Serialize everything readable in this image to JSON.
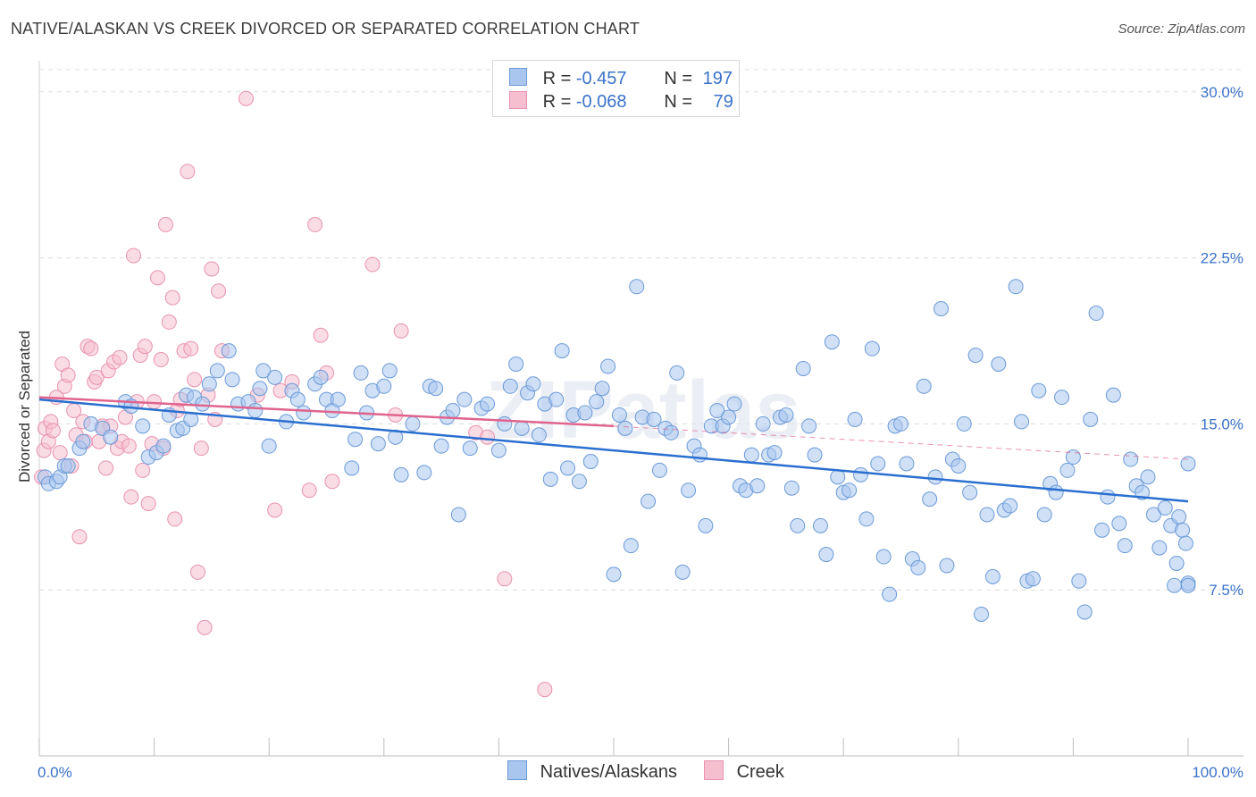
{
  "header": {
    "title": "NATIVE/ALASKAN VS CREEK DIVORCED OR SEPARATED CORRELATION CHART",
    "source": "Source: ZipAtlas.com"
  },
  "legend": {
    "rows": [
      {
        "r_label": "R =",
        "r_value": "-0.457",
        "n_label": "N =",
        "n_value": "197"
      },
      {
        "r_label": "R =",
        "r_value": "-0.068",
        "n_label": "N =",
        "n_value": "79"
      }
    ]
  },
  "bottom_legend": [
    "Natives/Alaskans",
    "Creek"
  ],
  "watermark": "ZIPatlas",
  "colors": {
    "blue_fill": "#a9c7ee",
    "blue_stroke": "#6b9ad8",
    "blue_line": "#2a6fd0",
    "pink_fill": "#f6bfd0",
    "pink_stroke": "#e892b0",
    "pink_line": "#e0648e",
    "tick_label": "#3a72c8",
    "grid": "#dcdcdc"
  },
  "chart_data": {
    "type": "scatter",
    "title": "NATIVE/ALASKAN VS CREEK DIVORCED OR SEPARATED CORRELATION CHART",
    "xlabel": "",
    "ylabel": "Divorced or Separated",
    "xlim": [
      0,
      100
    ],
    "ylim": [
      0,
      31
    ],
    "x_tick_labels": [
      "0.0%",
      "100.0%"
    ],
    "y_ticks": [
      7.5,
      15.0,
      22.5,
      30.0
    ],
    "y_tick_labels": [
      "7.5%",
      "15.0%",
      "22.5%",
      "30.0%"
    ],
    "grid": true,
    "legend_position": "top-center",
    "series": [
      {
        "name": "Natives/Alaskans",
        "r": -0.457,
        "n": 197,
        "trend": {
          "x": [
            0,
            100
          ],
          "y": [
            16.1,
            11.5
          ]
        },
        "points": [
          [
            0.5,
            12.6
          ],
          [
            0.8,
            12.3
          ],
          [
            1.5,
            12.4
          ],
          [
            1.8,
            12.6
          ],
          [
            2.2,
            13.1
          ],
          [
            2.5,
            13.1
          ],
          [
            3.5,
            13.9
          ],
          [
            3.8,
            14.2
          ],
          [
            4.5,
            15.0
          ],
          [
            5.5,
            14.8
          ],
          [
            6.2,
            14.4
          ],
          [
            7.5,
            16.0
          ],
          [
            8.0,
            15.8
          ],
          [
            9.0,
            14.9
          ],
          [
            9.5,
            13.5
          ],
          [
            10.2,
            13.7
          ],
          [
            10.8,
            14.0
          ],
          [
            11.3,
            15.4
          ],
          [
            12.0,
            14.7
          ],
          [
            12.5,
            14.8
          ],
          [
            12.8,
            16.3
          ],
          [
            13.2,
            15.2
          ],
          [
            13.5,
            16.2
          ],
          [
            14.2,
            15.9
          ],
          [
            14.8,
            16.8
          ],
          [
            15.5,
            17.4
          ],
          [
            16.5,
            18.3
          ],
          [
            16.8,
            17.0
          ],
          [
            17.3,
            15.9
          ],
          [
            18.2,
            16.0
          ],
          [
            18.8,
            15.6
          ],
          [
            19.2,
            16.6
          ],
          [
            19.5,
            17.4
          ],
          [
            20.0,
            14.0
          ],
          [
            20.5,
            17.1
          ],
          [
            21.5,
            15.1
          ],
          [
            22.0,
            16.5
          ],
          [
            22.5,
            16.1
          ],
          [
            23.0,
            15.5
          ],
          [
            24.0,
            16.8
          ],
          [
            24.5,
            17.1
          ],
          [
            25.0,
            16.1
          ],
          [
            25.5,
            15.6
          ],
          [
            26.0,
            16.1
          ],
          [
            27.2,
            13.0
          ],
          [
            27.5,
            14.3
          ],
          [
            28.0,
            17.3
          ],
          [
            28.5,
            15.5
          ],
          [
            29.0,
            16.5
          ],
          [
            29.5,
            14.1
          ],
          [
            30.0,
            16.7
          ],
          [
            30.5,
            17.4
          ],
          [
            31.0,
            14.4
          ],
          [
            31.5,
            12.7
          ],
          [
            32.5,
            15.0
          ],
          [
            33.5,
            12.8
          ],
          [
            34.0,
            16.7
          ],
          [
            34.5,
            16.6
          ],
          [
            35.0,
            14.0
          ],
          [
            35.5,
            15.3
          ],
          [
            36.0,
            15.6
          ],
          [
            36.5,
            10.9
          ],
          [
            37.0,
            16.1
          ],
          [
            37.5,
            13.9
          ],
          [
            38.5,
            15.7
          ],
          [
            39.0,
            15.9
          ],
          [
            40.0,
            13.8
          ],
          [
            40.5,
            15.0
          ],
          [
            41.0,
            16.7
          ],
          [
            41.5,
            17.7
          ],
          [
            42.0,
            14.8
          ],
          [
            42.5,
            16.4
          ],
          [
            43.0,
            16.8
          ],
          [
            43.5,
            14.5
          ],
          [
            44.0,
            15.9
          ],
          [
            44.5,
            12.5
          ],
          [
            45.0,
            16.1
          ],
          [
            45.5,
            18.3
          ],
          [
            46.0,
            13.0
          ],
          [
            46.5,
            15.4
          ],
          [
            47.0,
            12.4
          ],
          [
            47.5,
            15.5
          ],
          [
            48.0,
            13.3
          ],
          [
            48.5,
            16.0
          ],
          [
            49.0,
            16.6
          ],
          [
            49.5,
            17.6
          ],
          [
            50.0,
            8.2
          ],
          [
            50.5,
            15.4
          ],
          [
            51.0,
            14.8
          ],
          [
            51.5,
            9.5
          ],
          [
            52.0,
            21.2
          ],
          [
            52.5,
            15.3
          ],
          [
            53.0,
            11.5
          ],
          [
            53.5,
            15.2
          ],
          [
            54.0,
            12.9
          ],
          [
            54.5,
            14.8
          ],
          [
            55.0,
            14.6
          ],
          [
            55.5,
            17.3
          ],
          [
            56.0,
            8.3
          ],
          [
            56.5,
            12.0
          ],
          [
            57.0,
            14.0
          ],
          [
            57.5,
            13.6
          ],
          [
            58.0,
            10.4
          ],
          [
            58.5,
            14.9
          ],
          [
            59.0,
            15.6
          ],
          [
            59.5,
            14.9
          ],
          [
            60.0,
            15.3
          ],
          [
            60.5,
            15.9
          ],
          [
            61.0,
            12.2
          ],
          [
            61.5,
            12.0
          ],
          [
            62.0,
            13.6
          ],
          [
            62.5,
            12.2
          ],
          [
            63.0,
            15.0
          ],
          [
            63.5,
            13.6
          ],
          [
            64.0,
            13.7
          ],
          [
            64.5,
            15.3
          ],
          [
            65.0,
            15.4
          ],
          [
            65.5,
            12.1
          ],
          [
            66.0,
            10.4
          ],
          [
            66.5,
            17.5
          ],
          [
            67.0,
            14.9
          ],
          [
            67.5,
            13.6
          ],
          [
            68.0,
            10.4
          ],
          [
            68.5,
            9.1
          ],
          [
            69.0,
            18.7
          ],
          [
            69.5,
            12.6
          ],
          [
            70.0,
            11.9
          ],
          [
            70.5,
            12.0
          ],
          [
            71.0,
            15.2
          ],
          [
            71.5,
            12.7
          ],
          [
            72.0,
            10.7
          ],
          [
            72.5,
            18.4
          ],
          [
            73.0,
            13.2
          ],
          [
            73.5,
            9.0
          ],
          [
            74.0,
            7.3
          ],
          [
            74.5,
            14.9
          ],
          [
            75.0,
            15.0
          ],
          [
            75.5,
            13.2
          ],
          [
            76.0,
            8.9
          ],
          [
            76.5,
            8.5
          ],
          [
            77.0,
            16.7
          ],
          [
            77.5,
            11.6
          ],
          [
            78.0,
            12.6
          ],
          [
            78.5,
            20.2
          ],
          [
            79.0,
            8.6
          ],
          [
            79.5,
            13.4
          ],
          [
            80.0,
            13.1
          ],
          [
            80.5,
            15.0
          ],
          [
            81.0,
            11.9
          ],
          [
            81.5,
            18.1
          ],
          [
            82.0,
            6.4
          ],
          [
            82.5,
            10.9
          ],
          [
            83.0,
            8.1
          ],
          [
            83.5,
            17.7
          ],
          [
            84.0,
            11.1
          ],
          [
            84.5,
            11.3
          ],
          [
            85.0,
            21.2
          ],
          [
            85.5,
            15.1
          ],
          [
            86.0,
            7.9
          ],
          [
            86.5,
            8.0
          ],
          [
            87.0,
            16.5
          ],
          [
            87.5,
            10.9
          ],
          [
            88.0,
            12.3
          ],
          [
            88.5,
            11.9
          ],
          [
            89.0,
            16.2
          ],
          [
            89.5,
            12.9
          ],
          [
            90.0,
            13.5
          ],
          [
            90.5,
            7.9
          ],
          [
            91.0,
            6.5
          ],
          [
            91.5,
            15.2
          ],
          [
            92.0,
            20.0
          ],
          [
            92.5,
            10.2
          ],
          [
            93.0,
            11.7
          ],
          [
            93.5,
            16.3
          ],
          [
            94.0,
            10.5
          ],
          [
            94.5,
            9.5
          ],
          [
            95.0,
            13.4
          ],
          [
            95.5,
            12.2
          ],
          [
            96.0,
            11.9
          ],
          [
            96.5,
            12.6
          ],
          [
            97.0,
            10.9
          ],
          [
            97.5,
            9.4
          ],
          [
            98.0,
            11.2
          ],
          [
            98.5,
            10.4
          ],
          [
            99.0,
            8.7
          ],
          [
            99.5,
            10.2
          ],
          [
            99.8,
            9.6
          ],
          [
            100.0,
            7.8
          ],
          [
            100.0,
            7.7
          ],
          [
            100.0,
            13.2
          ],
          [
            98.8,
            7.7
          ],
          [
            99.2,
            10.8
          ]
        ]
      },
      {
        "name": "Creek",
        "r": -0.068,
        "n": 79,
        "trend": {
          "x": [
            0,
            50
          ],
          "y": [
            16.2,
            14.9
          ]
        },
        "trend_dashed": {
          "x": [
            50,
            100
          ],
          "y": [
            14.9,
            13.4
          ]
        },
        "points": [
          [
            0.2,
            12.6
          ],
          [
            0.4,
            13.8
          ],
          [
            0.5,
            14.8
          ],
          [
            0.8,
            14.2
          ],
          [
            1.0,
            15.1
          ],
          [
            1.2,
            14.7
          ],
          [
            1.5,
            16.2
          ],
          [
            1.8,
            13.7
          ],
          [
            2.0,
            17.7
          ],
          [
            2.2,
            16.7
          ],
          [
            2.5,
            17.2
          ],
          [
            2.8,
            13.1
          ],
          [
            3.0,
            15.6
          ],
          [
            3.2,
            14.5
          ],
          [
            3.5,
            9.9
          ],
          [
            3.8,
            15.1
          ],
          [
            4.0,
            14.2
          ],
          [
            4.2,
            18.5
          ],
          [
            4.5,
            18.4
          ],
          [
            4.8,
            16.9
          ],
          [
            5.0,
            17.1
          ],
          [
            5.2,
            14.2
          ],
          [
            5.5,
            14.9
          ],
          [
            5.8,
            13.0
          ],
          [
            6.0,
            17.4
          ],
          [
            6.2,
            14.9
          ],
          [
            6.5,
            17.8
          ],
          [
            6.8,
            13.9
          ],
          [
            7.0,
            18.0
          ],
          [
            7.2,
            14.2
          ],
          [
            7.5,
            15.3
          ],
          [
            7.8,
            14.0
          ],
          [
            8.0,
            11.7
          ],
          [
            8.2,
            22.6
          ],
          [
            8.5,
            16.0
          ],
          [
            8.8,
            18.1
          ],
          [
            9.0,
            12.9
          ],
          [
            9.2,
            18.5
          ],
          [
            9.5,
            11.4
          ],
          [
            9.8,
            14.1
          ],
          [
            10.0,
            16.0
          ],
          [
            10.3,
            21.6
          ],
          [
            10.6,
            17.9
          ],
          [
            10.8,
            13.9
          ],
          [
            11.0,
            24.0
          ],
          [
            11.3,
            19.6
          ],
          [
            11.6,
            20.7
          ],
          [
            11.8,
            10.7
          ],
          [
            12.0,
            15.6
          ],
          [
            12.3,
            16.1
          ],
          [
            12.6,
            18.3
          ],
          [
            12.9,
            26.4
          ],
          [
            13.2,
            18.4
          ],
          [
            13.5,
            17.0
          ],
          [
            13.8,
            8.3
          ],
          [
            14.1,
            13.9
          ],
          [
            14.4,
            5.8
          ],
          [
            14.7,
            16.3
          ],
          [
            15.0,
            22.0
          ],
          [
            15.3,
            15.2
          ],
          [
            15.6,
            21.0
          ],
          [
            15.9,
            18.3
          ],
          [
            18.0,
            29.7
          ],
          [
            19.0,
            16.3
          ],
          [
            20.5,
            11.1
          ],
          [
            21.0,
            16.5
          ],
          [
            22.0,
            16.9
          ],
          [
            23.5,
            12.0
          ],
          [
            24.0,
            24.0
          ],
          [
            24.5,
            19.0
          ],
          [
            25.0,
            17.3
          ],
          [
            25.5,
            12.4
          ],
          [
            29.0,
            22.2
          ],
          [
            31.0,
            15.4
          ],
          [
            31.5,
            19.2
          ],
          [
            38.0,
            14.6
          ],
          [
            39.0,
            14.4
          ],
          [
            40.5,
            8.0
          ],
          [
            44.0,
            3.0
          ]
        ]
      }
    ]
  }
}
